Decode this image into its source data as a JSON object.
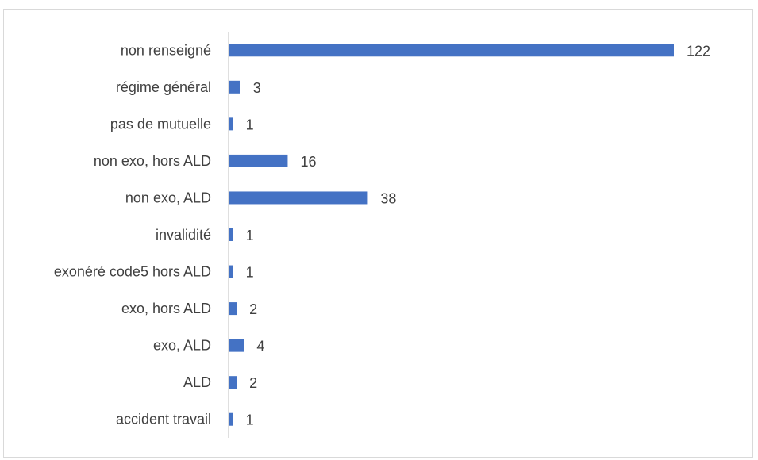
{
  "chart_data": {
    "type": "bar",
    "orientation": "horizontal",
    "categories": [
      "non renseigné",
      "régime général",
      "pas de mutuelle",
      "non exo, hors ALD",
      "non exo, ALD",
      "invalidité",
      "exonéré code5 hors ALD",
      "exo, hors ALD",
      "exo, ALD",
      "ALD",
      "accident travail"
    ],
    "values": [
      122,
      3,
      1,
      16,
      38,
      1,
      1,
      2,
      4,
      2,
      1
    ],
    "title": "",
    "xlabel": "",
    "ylabel": "",
    "xlim": [
      0,
      122
    ],
    "bar_color": "#4472c4",
    "grid": false,
    "data_labels": true
  }
}
